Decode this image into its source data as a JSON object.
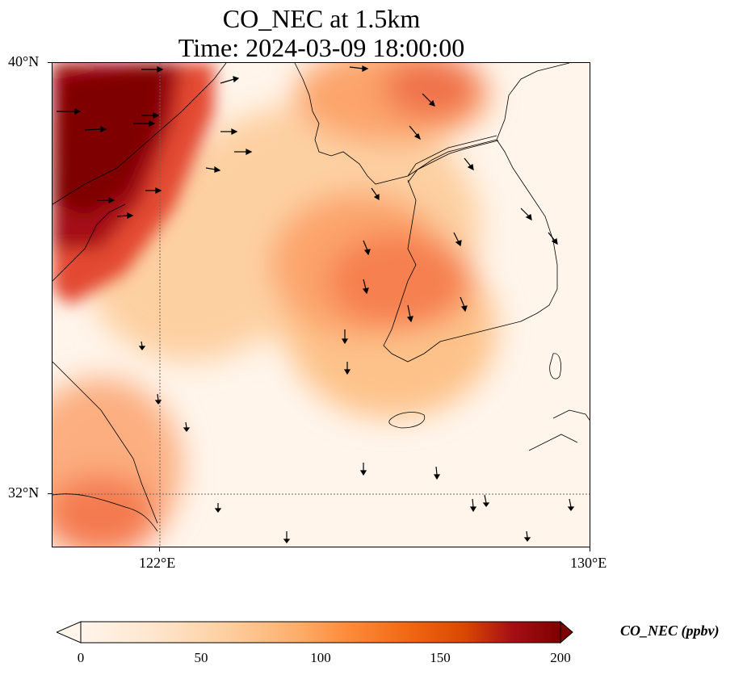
{
  "title": {
    "line1": "CO_NEC at 1.5km",
    "line2": "Time: 2024-03-09 18:00:00"
  },
  "map": {
    "lat_labels": [
      "40°N",
      "32°N"
    ],
    "lon_labels": [
      "122°E",
      "130°E"
    ],
    "extent": {
      "lon_min": 120,
      "lon_max": 130,
      "lat_min": 31,
      "lat_max": 40
    }
  },
  "colorbar": {
    "title": "CO_NEC (ppbv)",
    "ticks": [
      "0",
      "50",
      "100",
      "150",
      "200"
    ],
    "min": 0,
    "max": 200,
    "extend": "both",
    "colors": [
      "#fff5eb",
      "#fee6ce",
      "#fdd0a2",
      "#fdae6b",
      "#fd8d3c",
      "#f16913",
      "#d94801",
      "#a50f15",
      "#7f0000"
    ]
  }
}
